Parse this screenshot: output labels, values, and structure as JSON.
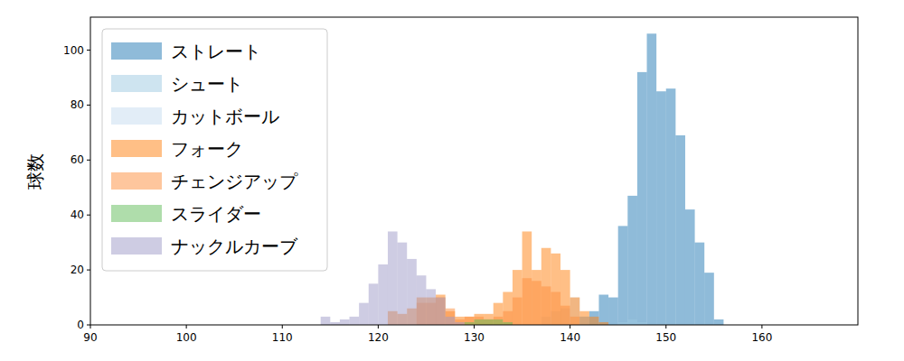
{
  "chart_data": {
    "type": "histogram",
    "y_label": "球数",
    "legend": "upper left",
    "grid": false,
    "xlim": [
      90,
      170
    ],
    "ylim": [
      0,
      112
    ],
    "xticks": [
      90,
      100,
      110,
      120,
      130,
      140,
      150,
      160
    ],
    "yticks": [
      0,
      20,
      40,
      60,
      80,
      100
    ],
    "bins": [
      114,
      115,
      116,
      117,
      118,
      119,
      120,
      121,
      122,
      123,
      124,
      125,
      126,
      127,
      128,
      129,
      130,
      131,
      132,
      133,
      134,
      135,
      136,
      137,
      138,
      139,
      140,
      141,
      142,
      143,
      144,
      145,
      146,
      147,
      148,
      149,
      150,
      151,
      152,
      153,
      154,
      155,
      156
    ],
    "series": [
      {
        "name": "ストレート",
        "color": "#1f77b4",
        "values": [
          0,
          0,
          0,
          0,
          0,
          0,
          0,
          0,
          0,
          0,
          0,
          0,
          0,
          0,
          0,
          0,
          0,
          0,
          0,
          0,
          0,
          0,
          0,
          0,
          0,
          0,
          0,
          3,
          5,
          11,
          10,
          36,
          47,
          92,
          106,
          85,
          86,
          69,
          42,
          30,
          19,
          2
        ]
      },
      {
        "name": "シュート",
        "color": "#9ecae1",
        "values": [
          0,
          0,
          0,
          0,
          0,
          0,
          0,
          0,
          0,
          0,
          0,
          0,
          0,
          0,
          0,
          0,
          0,
          0,
          0,
          0,
          0,
          0,
          0,
          0,
          0,
          0,
          0,
          0,
          0,
          0,
          0,
          1,
          2,
          1,
          0,
          0,
          0,
          0,
          0,
          0,
          0,
          0
        ]
      },
      {
        "name": "カットボール",
        "color": "#c6dbef",
        "values": [
          0,
          0,
          0,
          0,
          0,
          0,
          0,
          0,
          0,
          0,
          0,
          0,
          0,
          0,
          0,
          0,
          0,
          0,
          0,
          0,
          0,
          0,
          0,
          3,
          5,
          6,
          10,
          3,
          0,
          0,
          0,
          0,
          0,
          0,
          0,
          0,
          0,
          0,
          0,
          0,
          0,
          0
        ]
      },
      {
        "name": "フォーク",
        "color": "#ff7f0e",
        "values": [
          0,
          0,
          0,
          0,
          0,
          0,
          0,
          5,
          4,
          6,
          10,
          10,
          11,
          5,
          3,
          3,
          4,
          4,
          8,
          12,
          20,
          34,
          20,
          28,
          26,
          20,
          10,
          5,
          3,
          1,
          0,
          0,
          0,
          0,
          0,
          0,
          0,
          0,
          0,
          0,
          0,
          0
        ]
      },
      {
        "name": "チェンジアップ",
        "color": "#fd8d3c",
        "values": [
          0,
          0,
          0,
          0,
          0,
          0,
          0,
          0,
          0,
          0,
          8,
          8,
          10,
          6,
          2,
          3,
          3,
          2,
          3,
          5,
          10,
          17,
          16,
          14,
          12,
          7,
          3,
          0,
          0,
          0,
          0,
          0,
          0,
          0,
          0,
          0,
          0,
          0,
          0,
          0,
          0,
          0
        ]
      },
      {
        "name": "スライダー",
        "color": "#5fbb57",
        "values": [
          0,
          0,
          0,
          0,
          0,
          0,
          0,
          0,
          0,
          0,
          0,
          0,
          0,
          0,
          0,
          1,
          2,
          2,
          2,
          1,
          0,
          0,
          0,
          0,
          0,
          0,
          0,
          0,
          0,
          0,
          0,
          0,
          0,
          0,
          0,
          0,
          0,
          0,
          0,
          0,
          0,
          0
        ]
      },
      {
        "name": "ナックルカーブ",
        "color": "#9e9ac8",
        "values": [
          3,
          1,
          2,
          3,
          8,
          15,
          22,
          34,
          30,
          24,
          18,
          13,
          10,
          3,
          1,
          0,
          0,
          0,
          0,
          0,
          0,
          0,
          0,
          0,
          0,
          0,
          0,
          0,
          0,
          0,
          0,
          0,
          0,
          0,
          0,
          0,
          0,
          0,
          0,
          0,
          0,
          0
        ]
      }
    ]
  }
}
